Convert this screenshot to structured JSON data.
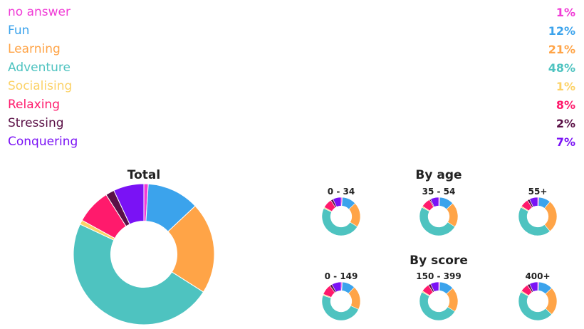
{
  "legend": [
    {
      "label": "no answer",
      "value": "1%",
      "color": "#f03bd6"
    },
    {
      "label": "Fun",
      "value": "12%",
      "color": "#3ba3ec"
    },
    {
      "label": "Learning",
      "value": "21%",
      "color": "#ffa447"
    },
    {
      "label": "Adventure",
      "value": "48%",
      "color": "#4ec3c0"
    },
    {
      "label": "Socialising",
      "value": "1%",
      "color": "#fcd266"
    },
    {
      "label": "Relaxing",
      "value": "8%",
      "color": "#ff1a6c"
    },
    {
      "label": "Stressing",
      "value": "2%",
      "color": "#5a1046"
    },
    {
      "label": "Conquering",
      "value": "7%",
      "color": "#7a12f5"
    }
  ],
  "headings": {
    "total": "Total",
    "by_age": "By age",
    "by_score": "By score"
  },
  "chart_data": [
    {
      "type": "pie",
      "title": "Total",
      "categories": [
        "no answer",
        "Fun",
        "Learning",
        "Adventure",
        "Socialising",
        "Relaxing",
        "Stressing",
        "Conquering"
      ],
      "values": [
        1,
        12,
        21,
        48,
        1,
        8,
        2,
        7
      ]
    },
    {
      "type": "pie",
      "title": "By age",
      "groups": [
        {
          "label": "0 - 34",
          "values": [
            1,
            12,
            21,
            48,
            1,
            8,
            2,
            7
          ]
        },
        {
          "label": "35 - 54",
          "values": [
            1,
            12,
            21,
            49,
            1,
            8,
            1,
            7
          ]
        },
        {
          "label": "55+",
          "values": [
            1,
            10,
            28,
            44,
            1,
            7,
            2,
            7
          ]
        }
      ]
    },
    {
      "type": "pie",
      "title": "By score",
      "groups": [
        {
          "label": "0 - 149",
          "values": [
            1,
            11,
            20,
            48,
            1,
            9,
            2,
            8
          ]
        },
        {
          "label": "150 - 399",
          "values": [
            1,
            12,
            21,
            49,
            1,
            7,
            2,
            7
          ]
        },
        {
          "label": "400+",
          "values": [
            1,
            12,
            24,
            46,
            1,
            7,
            2,
            7
          ]
        }
      ]
    }
  ]
}
